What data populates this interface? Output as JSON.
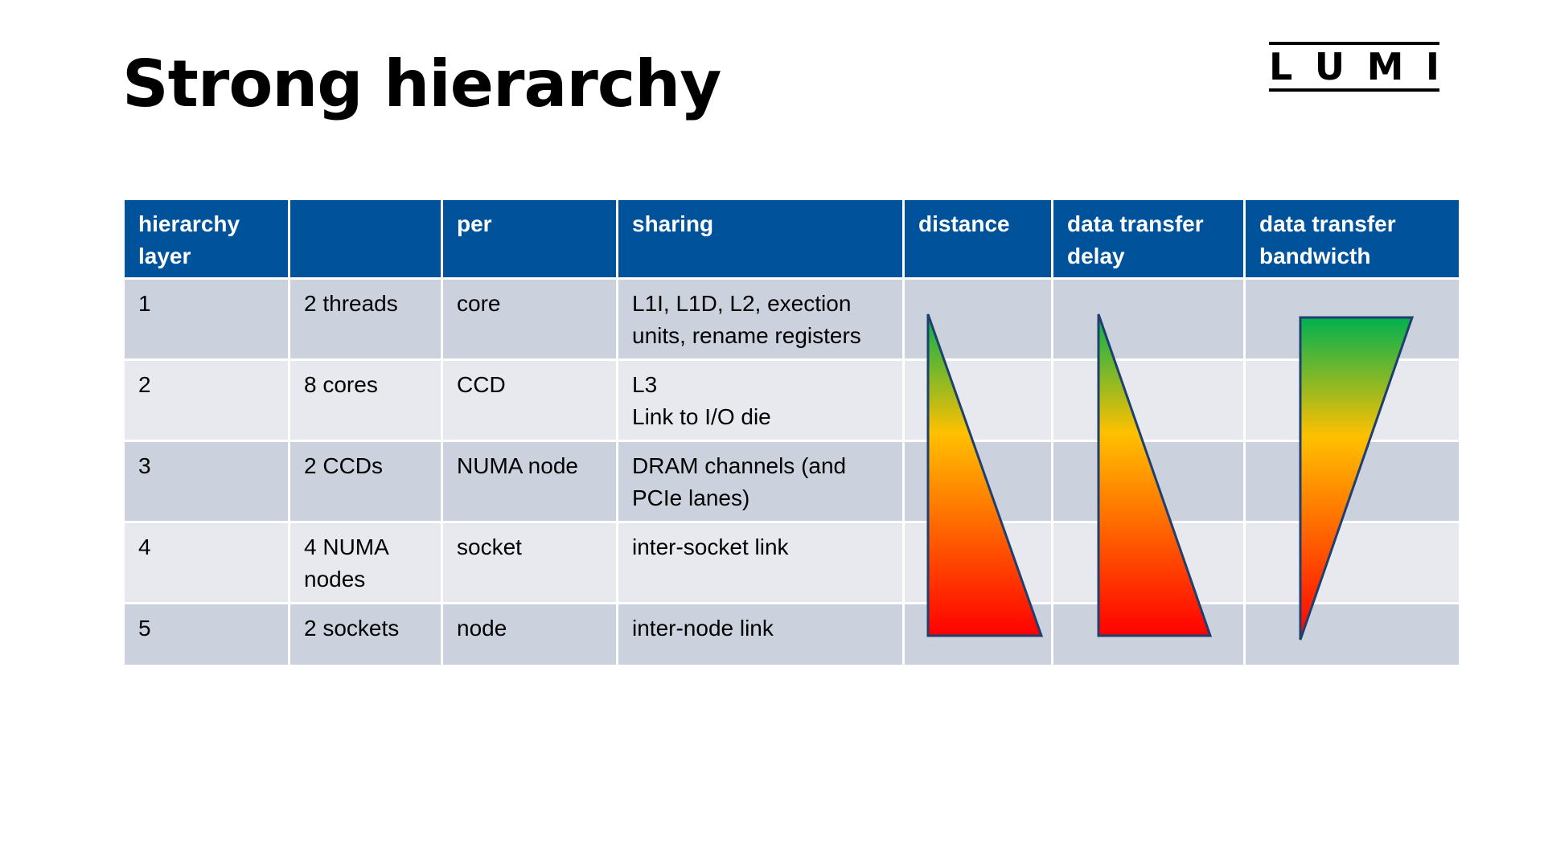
{
  "title": "Strong hierarchy",
  "logo": {
    "letters": [
      "L",
      "U",
      "M",
      "I"
    ],
    "text": "LUMI"
  },
  "colors": {
    "header_bg": "#00529b",
    "row_odd": "#cbd2de",
    "row_even": "#e7e9ef",
    "gradient_good": "#00b050",
    "gradient_mid": "#ffc000",
    "gradient_bad": "#ff0000",
    "outline": "#1f3f6e"
  },
  "table": {
    "headers": [
      "hierarchy layer",
      "",
      "per",
      "sharing",
      "distance",
      "data transfer delay",
      "data transfer bandwicth"
    ],
    "rows": [
      [
        "1",
        "2 threads",
        "core",
        "L1I, L1D, L2, exection units, rename registers"
      ],
      [
        "2",
        "8 cores",
        "CCD",
        "L3\nLink to I/O die"
      ],
      [
        "3",
        "2 CCDs",
        "NUMA node",
        "DRAM channels (and PCIe lanes)"
      ],
      [
        "4",
        "4 NUMA nodes",
        "socket",
        "inter-socket link"
      ],
      [
        "5",
        "2 sockets",
        "node",
        "inter-node link"
      ]
    ],
    "indicators": {
      "distance": "increasing",
      "data_transfer_delay": "increasing",
      "data_transfer_bandwidth": "decreasing"
    }
  }
}
